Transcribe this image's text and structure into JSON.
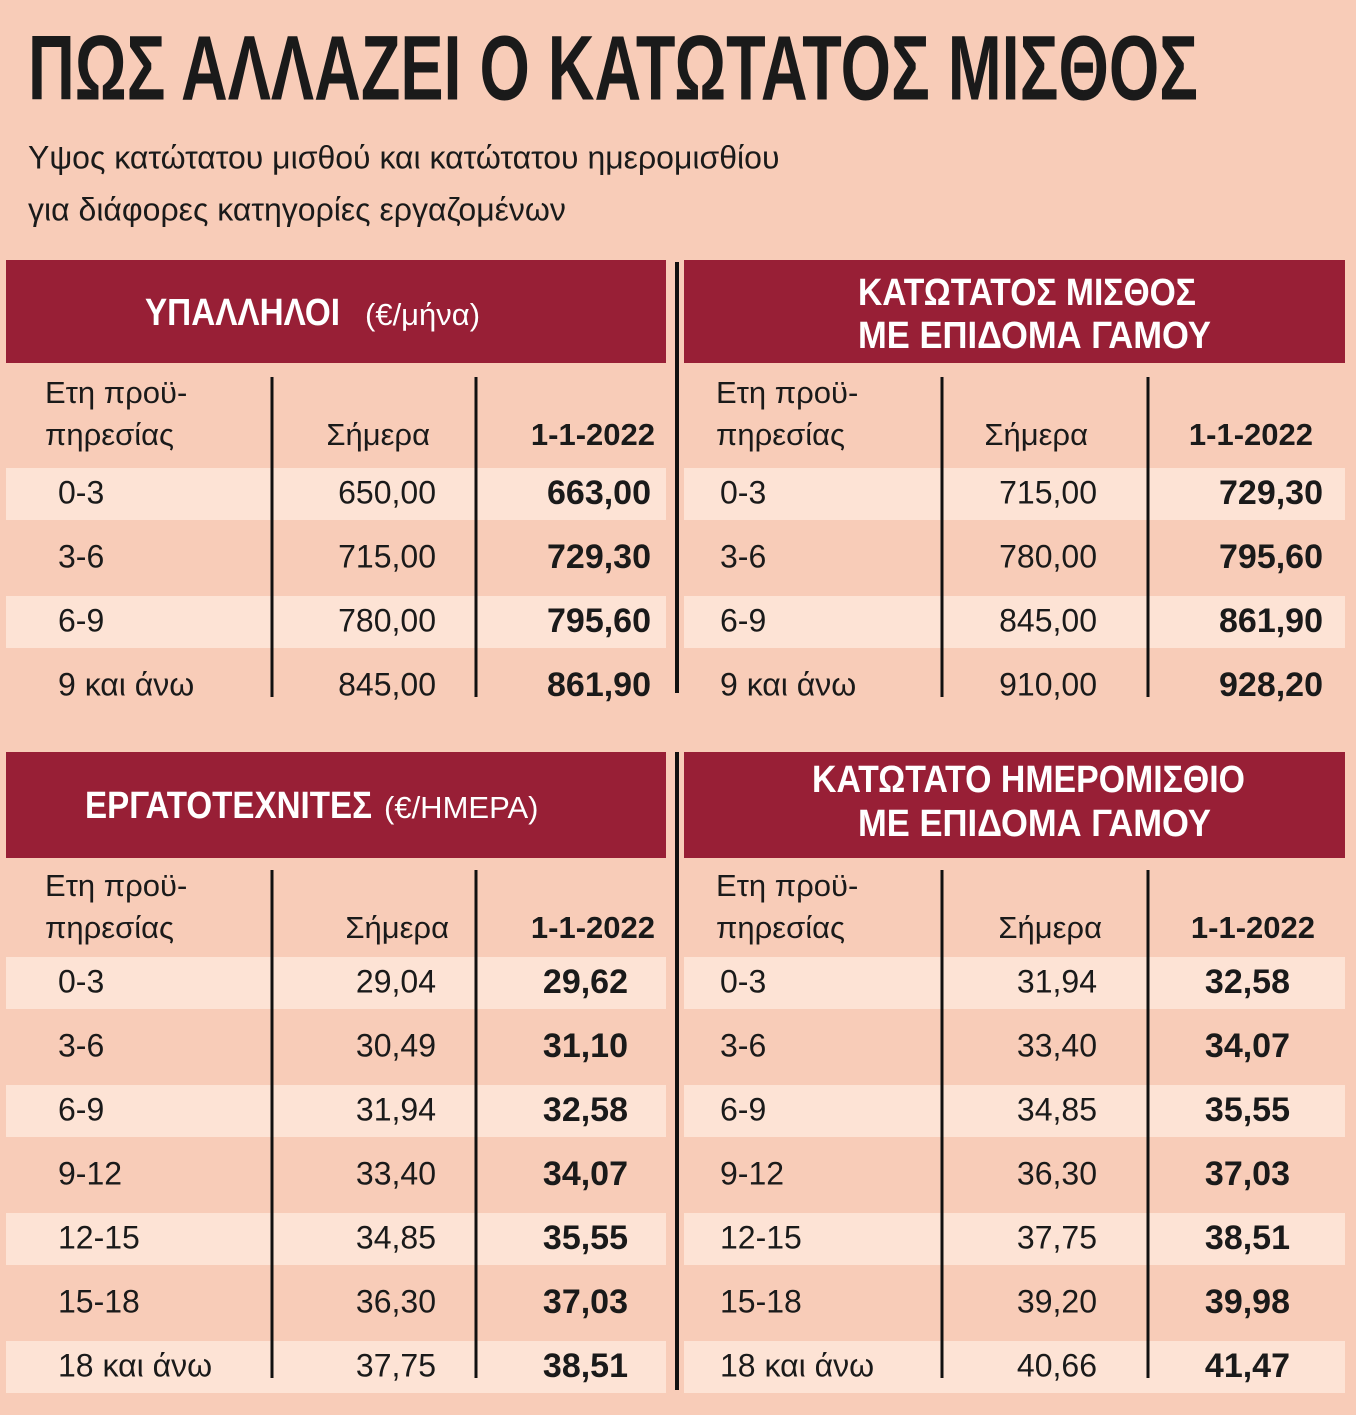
{
  "header": {
    "title": "ΠΩΣ ΑΛΛΑΖΕΙ Ο ΚΑΤΩΤΑΤΟΣ ΜΙΣΘΟΣ",
    "subtitle": [
      "Υψος κατώτατου μισθού και κατώτατου ημερομισθίου",
      "για διάφορες κατηγορίες εργαζομένων"
    ]
  },
  "tables": [
    {
      "title": [
        "ΥΠΑΛΛΗΛΟΙ"
      ],
      "unit": "(€/μήνα)",
      "columns": {
        "years": [
          "Ετη προϋ-",
          "πηρεσίας"
        ],
        "today": "Σήμερα",
        "new": "1-1-2022"
      },
      "rows": [
        [
          "0-3",
          "650,00",
          "663,00"
        ],
        [
          "3-6",
          "715,00",
          "729,30"
        ],
        [
          "6-9",
          "780,00",
          "795,60"
        ],
        [
          "9 και άνω",
          "845,00",
          "861,90"
        ]
      ]
    },
    {
      "title": [
        "ΚΑΤΩΤΑΤΟΣ ΜΙΣΘΟΣ",
        "ΜΕ ΕΠΙΔΟΜΑ ΓΑΜΟΥ"
      ],
      "columns": {
        "years": [
          "Ετη προϋ-",
          "πηρεσίας"
        ],
        "today": "Σήμερα",
        "new": "1-1-2022"
      },
      "rows": [
        [
          "0-3",
          "715,00",
          "729,30"
        ],
        [
          "3-6",
          "780,00",
          "795,60"
        ],
        [
          "6-9",
          "845,00",
          "861,90"
        ],
        [
          "9 και άνω",
          "910,00",
          "928,20"
        ]
      ]
    },
    {
      "title": [
        "ΕΡΓΑΤΟΤΕΧΝΙΤΕΣ"
      ],
      "unit": "(€/ΗΜΕΡΑ)",
      "columns": {
        "years": [
          "Ετη προϋ-",
          "πηρεσίας"
        ],
        "today": "Σήμερα",
        "new": "1-1-2022"
      },
      "rows": [
        [
          "0-3",
          "29,04",
          "29,62"
        ],
        [
          "3-6",
          "30,49",
          "31,10"
        ],
        [
          "6-9",
          "31,94",
          "32,58"
        ],
        [
          "9-12",
          "33,40",
          "34,07"
        ],
        [
          "12-15",
          "34,85",
          "35,55"
        ],
        [
          "15-18",
          "36,30",
          "37,03"
        ],
        [
          "18 και άνω",
          "37,75",
          "38,51"
        ]
      ]
    },
    {
      "title": [
        "ΚΑΤΩΤΑΤΟ ΗΜΕΡΟΜΙΣΘΙΟ",
        "ΜΕ ΕΠΙΔΟΜΑ ΓΑΜΟΥ"
      ],
      "columns": {
        "years": [
          "Ετη προϋ-",
          "πηρεσίας"
        ],
        "today": "Σήμερα",
        "new": "1-1-2022"
      },
      "rows": [
        [
          "0-3",
          "31,94",
          "32,58"
        ],
        [
          "3-6",
          "33,40",
          "34,07"
        ],
        [
          "6-9",
          "34,85",
          "35,55"
        ],
        [
          "9-12",
          "36,30",
          "37,03"
        ],
        [
          "12-15",
          "37,75",
          "38,51"
        ],
        [
          "15-18",
          "39,20",
          "39,98"
        ],
        [
          "18 και άνω",
          "40,66",
          "41,47"
        ]
      ]
    }
  ]
}
